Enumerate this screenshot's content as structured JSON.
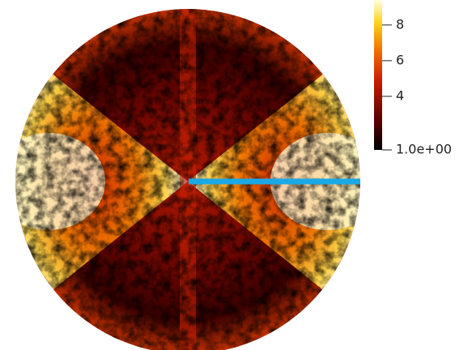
{
  "chart_data": {
    "type": "field",
    "colorbar": {
      "lim": [
        1,
        9.4
      ],
      "ticks": [
        {
          "value": 1,
          "label": "1.0e+00"
        },
        4,
        6,
        8
      ]
    }
  }
}
